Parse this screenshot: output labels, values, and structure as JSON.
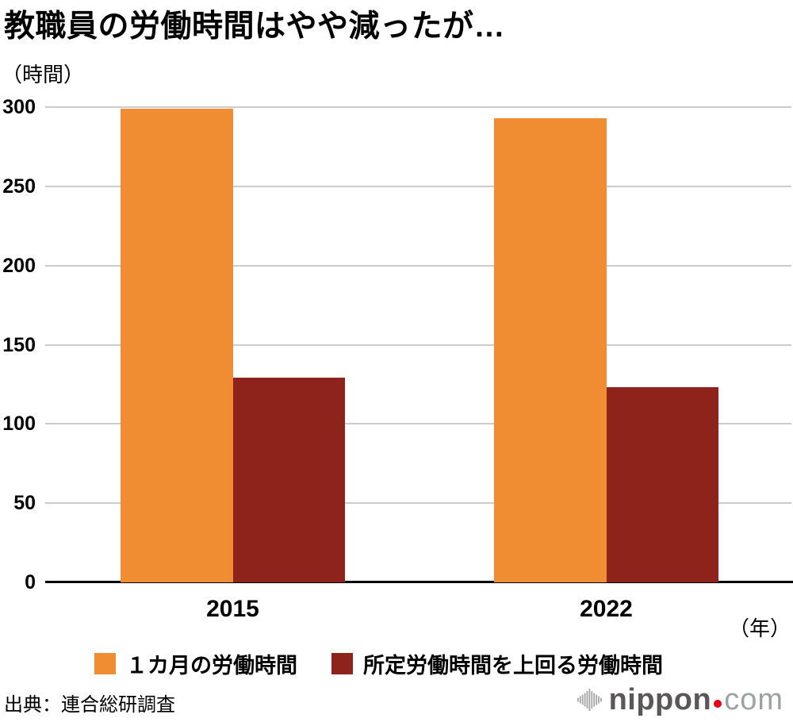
{
  "title": "教職員の労働時間はやや減ったが…",
  "y_axis_unit": "（時間）",
  "x_axis_unit": "（年）",
  "source": "出典：連合総研調査",
  "logo": {
    "name": "nippon",
    "tld": "com",
    "dot_color": "#e60012"
  },
  "colors": {
    "series_monthly": "#f08d32",
    "series_overtime": "#8d231a",
    "gridline": "#cccccc",
    "axis": "#000000"
  },
  "chart_data": {
    "type": "bar",
    "title": "教職員の労働時間はやや減ったが…",
    "categories": [
      "2015",
      "2022"
    ],
    "series": [
      {
        "name": "１カ月の労働時間",
        "color": "#f08d32",
        "values": [
          299,
          293
        ]
      },
      {
        "name": "所定労働時間を上回る労働時間",
        "color": "#8d231a",
        "values": [
          129,
          123
        ]
      }
    ],
    "xlabel": "（年）",
    "ylabel": "（時間）",
    "ylim": [
      0,
      300
    ],
    "yticks": [
      0,
      50,
      100,
      150,
      200,
      250,
      300
    ],
    "grid": true,
    "legend_position": "bottom"
  }
}
